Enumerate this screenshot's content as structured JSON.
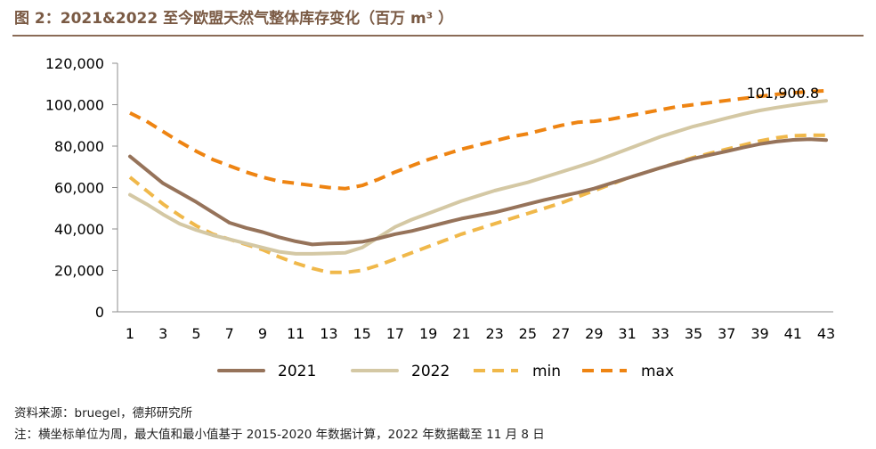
{
  "title": "图 2：2021&2022 至今欧盟天然气整体库存变化（百万 m³ ）",
  "source": "资料来源：bruegel，德邦研究所",
  "note": "注：横坐标单位为周，最大值和最小值基于 2015-2020 年数据计算，2022 年数据截至 11 月 8 日",
  "colors": {
    "title": "#7a5a44",
    "rule": "#8a6b57",
    "s2021": "#96735a",
    "s2022": "#d4c8a4",
    "min": "#f0b84a",
    "max": "#ee8412"
  },
  "chart_data": {
    "type": "line",
    "xlim": [
      1,
      43
    ],
    "ylim": [
      0,
      120000
    ],
    "y_ticks": [
      0,
      20000,
      40000,
      60000,
      80000,
      100000,
      120000
    ],
    "y_tick_labels": [
      "0",
      "20,000",
      "40,000",
      "60,000",
      "80,000",
      "100,000",
      "120,000"
    ],
    "x_ticks": [
      1,
      3,
      5,
      7,
      9,
      11,
      13,
      15,
      17,
      19,
      21,
      23,
      25,
      27,
      29,
      31,
      33,
      35,
      37,
      39,
      41,
      43
    ],
    "x_tick_labels": [
      "1",
      "3",
      "5",
      "7",
      "9",
      "11",
      "13",
      "15",
      "17",
      "19",
      "21",
      "23",
      "25",
      "27",
      "29",
      "31",
      "33",
      "35",
      "37",
      "39",
      "41",
      "43"
    ],
    "legend_position": "bottom",
    "grid": false,
    "series": [
      {
        "name": "2021",
        "style": "solid",
        "points": [
          [
            1,
            75000
          ],
          [
            2,
            68500
          ],
          [
            3,
            62000
          ],
          [
            4,
            57500
          ],
          [
            5,
            53000
          ],
          [
            6,
            48000
          ],
          [
            7,
            43000
          ],
          [
            8,
            40500
          ],
          [
            9,
            38500
          ],
          [
            10,
            36000
          ],
          [
            11,
            34000
          ],
          [
            12,
            32500
          ],
          [
            13,
            33000
          ],
          [
            14,
            33200
          ],
          [
            15,
            33800
          ],
          [
            16,
            35500
          ],
          [
            17,
            37500
          ],
          [
            18,
            39000
          ],
          [
            19,
            41000
          ],
          [
            20,
            43000
          ],
          [
            21,
            45000
          ],
          [
            22,
            46500
          ],
          [
            23,
            48000
          ],
          [
            24,
            50000
          ],
          [
            25,
            52000
          ],
          [
            26,
            54000
          ],
          [
            27,
            55800
          ],
          [
            28,
            57500
          ],
          [
            29,
            59500
          ],
          [
            30,
            62000
          ],
          [
            31,
            64500
          ],
          [
            32,
            67000
          ],
          [
            33,
            69500
          ],
          [
            34,
            71800
          ],
          [
            35,
            74000
          ],
          [
            36,
            75800
          ],
          [
            37,
            77500
          ],
          [
            38,
            79300
          ],
          [
            39,
            81000
          ],
          [
            40,
            82200
          ],
          [
            41,
            83000
          ],
          [
            42,
            83300
          ],
          [
            43,
            82900
          ]
        ]
      },
      {
        "name": "2022",
        "style": "solid",
        "points": [
          [
            1,
            56500
          ],
          [
            2,
            52000
          ],
          [
            3,
            47000
          ],
          [
            4,
            42500
          ],
          [
            5,
            39500
          ],
          [
            6,
            37000
          ],
          [
            7,
            35000
          ],
          [
            8,
            33000
          ],
          [
            9,
            31000
          ],
          [
            10,
            29000
          ],
          [
            11,
            28000
          ],
          [
            12,
            28000
          ],
          [
            13,
            28200
          ],
          [
            14,
            28500
          ],
          [
            15,
            31000
          ],
          [
            16,
            36000
          ],
          [
            17,
            41000
          ],
          [
            18,
            44500
          ],
          [
            19,
            47500
          ],
          [
            20,
            50500
          ],
          [
            21,
            53500
          ],
          [
            22,
            56000
          ],
          [
            23,
            58500
          ],
          [
            24,
            60500
          ],
          [
            25,
            62500
          ],
          [
            26,
            65000
          ],
          [
            27,
            67500
          ],
          [
            28,
            70000
          ],
          [
            29,
            72500
          ],
          [
            30,
            75500
          ],
          [
            31,
            78500
          ],
          [
            32,
            81500
          ],
          [
            33,
            84500
          ],
          [
            34,
            87000
          ],
          [
            35,
            89500
          ],
          [
            36,
            91500
          ],
          [
            37,
            93500
          ],
          [
            38,
            95500
          ],
          [
            39,
            97200
          ],
          [
            40,
            98600
          ],
          [
            41,
            99800
          ],
          [
            42,
            100900
          ],
          [
            43,
            101900.8
          ]
        ]
      },
      {
        "name": "min",
        "style": "dashed",
        "points": [
          [
            1,
            65000
          ],
          [
            2,
            58500
          ],
          [
            3,
            52000
          ],
          [
            4,
            46500
          ],
          [
            5,
            41500
          ],
          [
            6,
            37500
          ],
          [
            7,
            35000
          ],
          [
            8,
            32500
          ],
          [
            9,
            30000
          ],
          [
            10,
            26500
          ],
          [
            11,
            23500
          ],
          [
            12,
            21000
          ],
          [
            13,
            19000
          ],
          [
            14,
            19000
          ],
          [
            15,
            20000
          ],
          [
            16,
            22500
          ],
          [
            17,
            25500
          ],
          [
            18,
            28500
          ],
          [
            19,
            31500
          ],
          [
            20,
            34500
          ],
          [
            21,
            37500
          ],
          [
            22,
            40000
          ],
          [
            23,
            42500
          ],
          [
            24,
            45000
          ],
          [
            25,
            47500
          ],
          [
            26,
            50000
          ],
          [
            27,
            52500
          ],
          [
            28,
            55500
          ],
          [
            29,
            58500
          ],
          [
            30,
            61500
          ],
          [
            31,
            64500
          ],
          [
            32,
            67000
          ],
          [
            33,
            69500
          ],
          [
            34,
            72000
          ],
          [
            35,
            74500
          ],
          [
            36,
            76500
          ],
          [
            37,
            78500
          ],
          [
            38,
            80500
          ],
          [
            39,
            82500
          ],
          [
            40,
            84000
          ],
          [
            41,
            85000
          ],
          [
            42,
            85300
          ],
          [
            43,
            85200
          ]
        ]
      },
      {
        "name": "max",
        "style": "dashed",
        "points": [
          [
            1,
            96000
          ],
          [
            2,
            92000
          ],
          [
            3,
            87000
          ],
          [
            4,
            82000
          ],
          [
            5,
            77500
          ],
          [
            6,
            73500
          ],
          [
            7,
            70500
          ],
          [
            8,
            67500
          ],
          [
            9,
            65000
          ],
          [
            10,
            63000
          ],
          [
            11,
            62000
          ],
          [
            12,
            61000
          ],
          [
            13,
            60000
          ],
          [
            14,
            59500
          ],
          [
            15,
            61000
          ],
          [
            16,
            64000
          ],
          [
            17,
            67500
          ],
          [
            18,
            70500
          ],
          [
            19,
            73500
          ],
          [
            20,
            76000
          ],
          [
            21,
            78500
          ],
          [
            22,
            80500
          ],
          [
            23,
            82500
          ],
          [
            24,
            84500
          ],
          [
            25,
            86000
          ],
          [
            26,
            88000
          ],
          [
            27,
            90000
          ],
          [
            28,
            91500
          ],
          [
            29,
            92000
          ],
          [
            30,
            93000
          ],
          [
            31,
            94500
          ],
          [
            32,
            96000
          ],
          [
            33,
            97500
          ],
          [
            34,
            99000
          ],
          [
            35,
            100000
          ],
          [
            36,
            101000
          ],
          [
            37,
            102000
          ],
          [
            38,
            103000
          ],
          [
            39,
            104000
          ],
          [
            40,
            105000
          ],
          [
            41,
            105700
          ],
          [
            42,
            106300
          ],
          [
            43,
            106700
          ]
        ]
      }
    ],
    "annotations": [
      {
        "text": "101,900.8",
        "x": 43,
        "y": 101900.8
      }
    ]
  }
}
